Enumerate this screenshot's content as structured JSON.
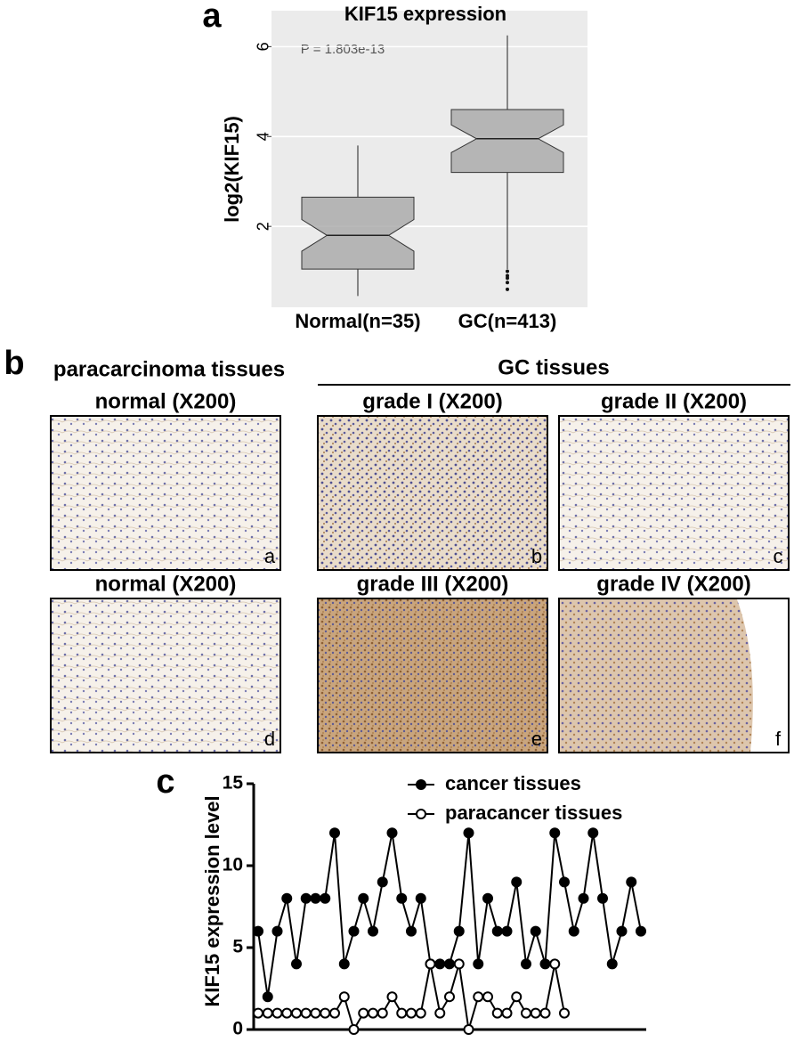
{
  "panel_labels": [
    "a",
    "b",
    "c"
  ],
  "chart_data": [
    {
      "type": "box",
      "title": "KIF15 expression",
      "ylabel": "log2(KIF15)",
      "annotation": "P = 1.803e-13",
      "categories": [
        "Normal(n=35)",
        "GC(n=413)"
      ],
      "boxes": [
        {
          "min": 0.45,
          "q1": 1.05,
          "median": 1.8,
          "q3": 2.65,
          "max": 3.8,
          "outliers": []
        },
        {
          "min": 1.05,
          "q1": 3.2,
          "median": 3.95,
          "q3": 4.6,
          "max": 6.25,
          "outliers": [
            1.0,
            0.9,
            0.85,
            0.75,
            0.6
          ]
        }
      ],
      "color": "#a8a8a8",
      "ylim": [
        0.2,
        6.8
      ],
      "yticks": [
        2,
        4,
        6
      ],
      "grid": true
    },
    {
      "type": "line",
      "ylabel": "KIF15 expression level",
      "ylim": [
        0,
        15
      ],
      "yticks": [
        0,
        5,
        10,
        15
      ],
      "legend": "top",
      "series": [
        {
          "name": "cancer tissues",
          "color": "#000000",
          "marker": "filled",
          "values": [
            6,
            2,
            6,
            8,
            4,
            8,
            8,
            8,
            12,
            4,
            6,
            8,
            6,
            9,
            12,
            8,
            6,
            8,
            4,
            4,
            4,
            6,
            12,
            4,
            8,
            6,
            6,
            9,
            4,
            6,
            4,
            12,
            9,
            6,
            8,
            12,
            8,
            4,
            6,
            9,
            6
          ]
        },
        {
          "name": "paracancer tissues",
          "color": "#000000",
          "marker": "open",
          "values": [
            1,
            1,
            1,
            1,
            1,
            1,
            1,
            1,
            1,
            2,
            0,
            1,
            1,
            1,
            2,
            1,
            1,
            1,
            4,
            1,
            2,
            4,
            0,
            2,
            2,
            1,
            1,
            2,
            1,
            1,
            1,
            4,
            1,
            null,
            null,
            null,
            null,
            null,
            null,
            null,
            null
          ]
        }
      ]
    }
  ],
  "histology": {
    "left_group": "paracarcinoma tissues",
    "right_group": "GC tissues",
    "images": [
      {
        "title": "normal (X200)",
        "letter": "a"
      },
      {
        "title": "grade I (X200)",
        "letter": "b"
      },
      {
        "title": "grade II (X200)",
        "letter": "c"
      },
      {
        "title": "normal (X200)",
        "letter": "d"
      },
      {
        "title": "grade III (X200)",
        "letter": "e"
      },
      {
        "title": "grade IV (X200)",
        "letter": "f"
      }
    ]
  }
}
